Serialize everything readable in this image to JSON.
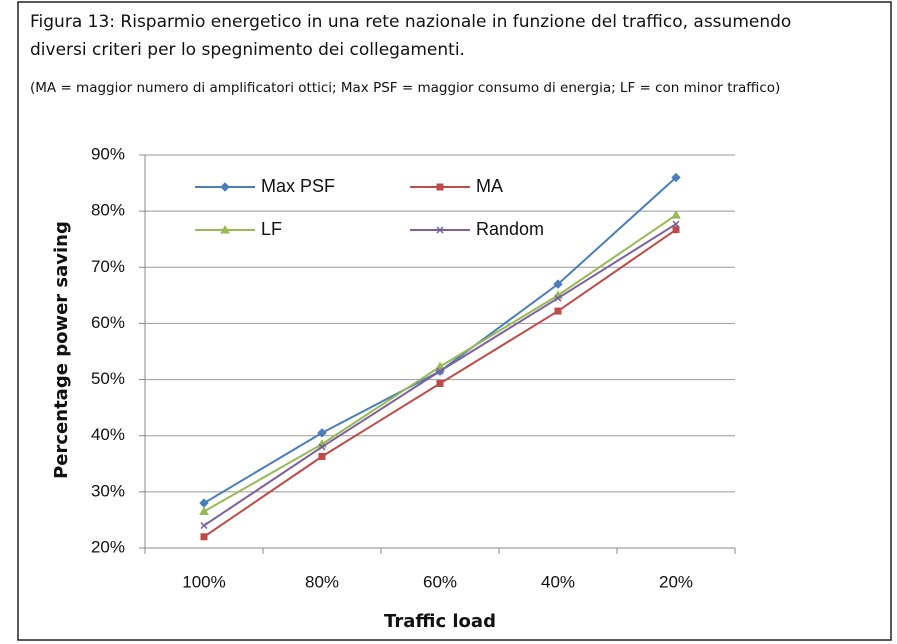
{
  "chart_data": {
    "type": "line",
    "title_lines": [
      "Figura 13: Risparmio energetico in una rete nazionale in funzione del traffico, assumendo",
      "diversi criteri per lo spegnimento dei collegamenti."
    ],
    "subtitle": "(MA = maggior numero di amplificatori ottici; Max PSF = maggior consumo di energia; LF = con minor traffico)",
    "x_label": "Traffic load",
    "y_label": "Percentage power saving",
    "categories": [
      "100%",
      "80%",
      "60%",
      "40%",
      "20%"
    ],
    "series": [
      {
        "name": "Max PSF",
        "color": "#4a7ebb",
        "marker": "diamond",
        "values": [
          28,
          40.5,
          51.5,
          67,
          86
        ]
      },
      {
        "name": "MA",
        "color": "#be4b48",
        "marker": "square",
        "values": [
          22,
          36.3,
          49.3,
          62.2,
          76.7
        ]
      },
      {
        "name": "LF",
        "color": "#98b954",
        "marker": "triangle",
        "values": [
          26.5,
          38.5,
          52.3,
          65,
          79.3
        ]
      },
      {
        "name": "Random",
        "color": "#7d60a0",
        "marker": "x",
        "values": [
          24,
          38,
          51.5,
          64.5,
          77.7
        ]
      }
    ],
    "ylim": [
      20,
      90
    ],
    "yticks": [
      {
        "value": 20,
        "label": "20%"
      },
      {
        "value": 30,
        "label": "30%"
      },
      {
        "value": 40,
        "label": "40%"
      },
      {
        "value": 50,
        "label": "50%"
      },
      {
        "value": 60,
        "label": "60%"
      },
      {
        "value": 70,
        "label": "70%"
      },
      {
        "value": 80,
        "label": "80%"
      },
      {
        "value": 90,
        "label": "90%"
      }
    ],
    "grid": true,
    "legend": "top"
  }
}
